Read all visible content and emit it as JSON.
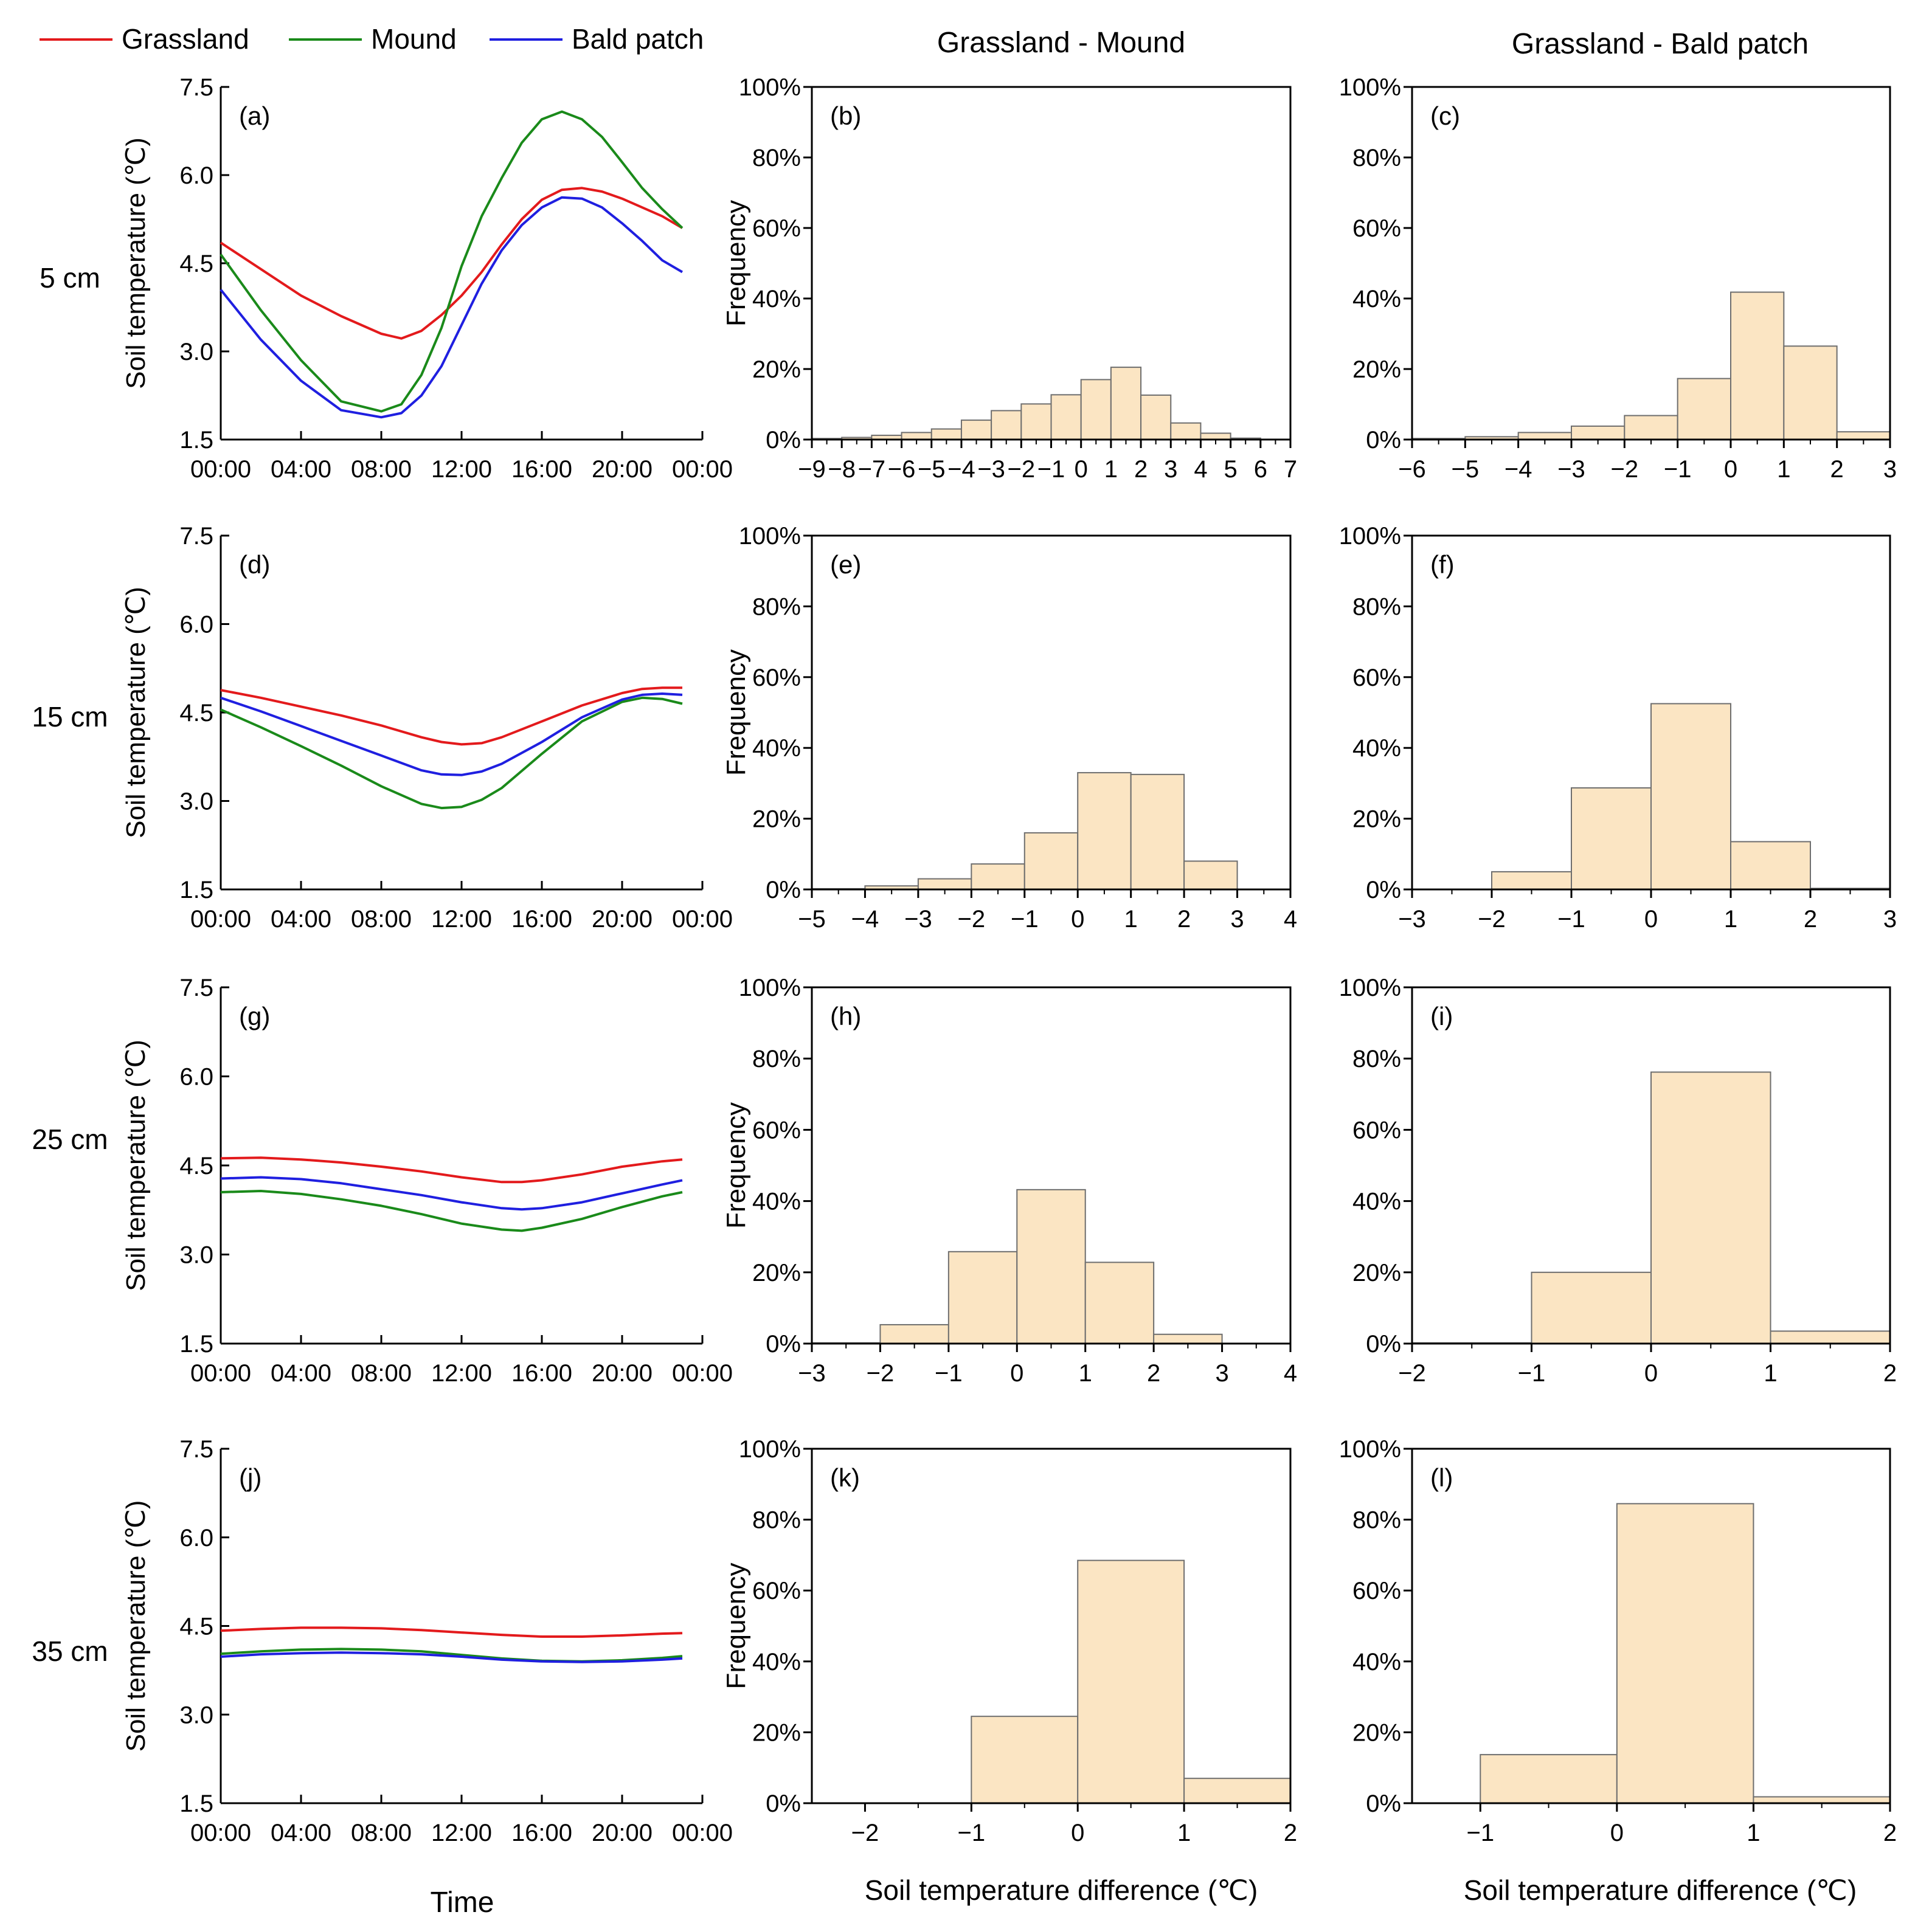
{
  "legend": {
    "items": [
      {
        "name": "Grassland",
        "color": "#e31a1c"
      },
      {
        "name": "Mound",
        "color": "#1a8a1a"
      },
      {
        "name": "Bald patch",
        "color": "#1f1fe0"
      }
    ]
  },
  "columns": {
    "col2": "Grassland - Mound",
    "col3": "Grassland - Bald patch"
  },
  "rows": [
    "5 cm",
    "15 cm",
    "25 cm",
    "35 cm"
  ],
  "axes": {
    "line_ylabel": "Soil temperature (℃)",
    "line_xlabel": "Time",
    "hist_ylabel": "Frequency",
    "hist_xlabel": "Soil temperature difference (℃)",
    "time_ticks": [
      "00:00",
      "04:00",
      "08:00",
      "12:00",
      "16:00",
      "20:00",
      "00:00"
    ],
    "temp_ticks": [
      "1.5",
      "3.0",
      "4.5",
      "6.0",
      "7.5"
    ],
    "pct_ticks": [
      "0%",
      "20%",
      "40%",
      "60%",
      "80%",
      "100%"
    ]
  },
  "chart_data": [
    {
      "id": "a",
      "type": "line",
      "panel_label": "(a)",
      "depth": "5 cm",
      "xlabel": "Time",
      "ylabel": "Soil temperature (℃)",
      "xlim": [
        0,
        24
      ],
      "ylim": [
        1.5,
        7.5
      ],
      "x": [
        0,
        2,
        4,
        6,
        8,
        9,
        10,
        11,
        12,
        13,
        14,
        15,
        16,
        17,
        18,
        19,
        20,
        21,
        22,
        23
      ],
      "series": [
        {
          "name": "Grassland",
          "values": [
            4.85,
            4.4,
            3.95,
            3.6,
            3.3,
            3.22,
            3.35,
            3.62,
            3.95,
            4.35,
            4.82,
            5.25,
            5.58,
            5.75,
            5.78,
            5.72,
            5.6,
            5.45,
            5.3,
            5.1
          ]
        },
        {
          "name": "Mound",
          "values": [
            4.65,
            3.7,
            2.85,
            2.15,
            1.98,
            2.1,
            2.6,
            3.4,
            4.45,
            5.3,
            5.95,
            6.55,
            6.95,
            7.08,
            6.95,
            6.65,
            6.22,
            5.78,
            5.42,
            5.1
          ]
        },
        {
          "name": "Bald patch",
          "values": [
            4.05,
            3.2,
            2.5,
            2.0,
            1.88,
            1.95,
            2.25,
            2.75,
            3.45,
            4.15,
            4.72,
            5.15,
            5.45,
            5.62,
            5.6,
            5.45,
            5.18,
            4.88,
            4.55,
            4.35
          ]
        }
      ]
    },
    {
      "id": "b",
      "type": "bar",
      "panel_label": "(b)",
      "xlim": [
        -9,
        7
      ],
      "ylim": [
        0,
        100
      ],
      "bins": [
        [
          -9,
          -8
        ],
        [
          -8,
          -7
        ],
        [
          -7,
          -6
        ],
        [
          -6,
          -5
        ],
        [
          -5,
          -4
        ],
        [
          -4,
          -3
        ],
        [
          -3,
          -2
        ],
        [
          -2,
          -1
        ],
        [
          -1,
          0
        ],
        [
          0,
          1
        ],
        [
          1,
          2
        ],
        [
          2,
          3
        ],
        [
          3,
          4
        ],
        [
          4,
          5
        ],
        [
          5,
          6
        ]
      ],
      "values": [
        0.3,
        0.6,
        1.2,
        2,
        3,
        5.5,
        8.2,
        10.1,
        12.7,
        17,
        20.5,
        12.6,
        4.7,
        1.8,
        0.4
      ]
    },
    {
      "id": "c",
      "type": "bar",
      "panel_label": "(c)",
      "xlim": [
        -6,
        3
      ],
      "ylim": [
        0,
        100
      ],
      "bins": [
        [
          -6,
          -5
        ],
        [
          -5,
          -4
        ],
        [
          -4,
          -3
        ],
        [
          -3,
          -2
        ],
        [
          -2,
          -1
        ],
        [
          -1,
          0
        ],
        [
          0,
          1
        ],
        [
          1,
          2
        ],
        [
          2,
          3
        ]
      ],
      "values": [
        0.3,
        0.8,
        2,
        3.8,
        6.8,
        17.3,
        41.8,
        26.5,
        2.2
      ]
    },
    {
      "id": "d",
      "type": "line",
      "panel_label": "(d)",
      "depth": "15 cm",
      "xlabel": "Time",
      "ylabel": "Soil temperature (℃)",
      "xlim": [
        0,
        24
      ],
      "ylim": [
        1.5,
        7.5
      ],
      "x": [
        0,
        2,
        4,
        6,
        8,
        10,
        11,
        12,
        13,
        14,
        16,
        18,
        20,
        21,
        22,
        23
      ],
      "series": [
        {
          "name": "Grassland",
          "values": [
            4.88,
            4.75,
            4.6,
            4.45,
            4.28,
            4.08,
            4.0,
            3.96,
            3.98,
            4.08,
            4.35,
            4.62,
            4.83,
            4.9,
            4.92,
            4.92
          ]
        },
        {
          "name": "Mound",
          "values": [
            4.55,
            4.25,
            3.93,
            3.6,
            3.25,
            2.95,
            2.88,
            2.9,
            3.02,
            3.22,
            3.8,
            4.35,
            4.68,
            4.75,
            4.73,
            4.65
          ]
        },
        {
          "name": "Bald patch",
          "values": [
            4.75,
            4.52,
            4.27,
            4.02,
            3.77,
            3.52,
            3.45,
            3.44,
            3.5,
            3.63,
            4.0,
            4.42,
            4.72,
            4.8,
            4.82,
            4.8
          ]
        }
      ]
    },
    {
      "id": "e",
      "type": "bar",
      "panel_label": "(e)",
      "xlim": [
        -5,
        4
      ],
      "ylim": [
        0,
        100
      ],
      "bins": [
        [
          -5,
          -4
        ],
        [
          -4,
          -3
        ],
        [
          -3,
          -2
        ],
        [
          -2,
          -1
        ],
        [
          -1,
          0
        ],
        [
          0,
          1
        ],
        [
          1,
          2
        ],
        [
          2,
          3
        ]
      ],
      "values": [
        0.2,
        1,
        3,
        7.2,
        16,
        33,
        32.5,
        8
      ]
    },
    {
      "id": "f",
      "type": "bar",
      "panel_label": "(f)",
      "xlim": [
        -3,
        3
      ],
      "ylim": [
        0,
        100
      ],
      "bins": [
        [
          -2,
          -1
        ],
        [
          -1,
          0
        ],
        [
          0,
          1
        ],
        [
          1,
          2
        ],
        [
          2,
          3
        ]
      ],
      "values": [
        5,
        28.7,
        52.5,
        13.5,
        0.3
      ]
    },
    {
      "id": "g",
      "type": "line",
      "panel_label": "(g)",
      "depth": "25 cm",
      "xlabel": "Time",
      "ylabel": "Soil temperature (℃)",
      "xlim": [
        0,
        24
      ],
      "ylim": [
        1.5,
        7.5
      ],
      "x": [
        0,
        2,
        4,
        6,
        8,
        10,
        12,
        14,
        15,
        16,
        18,
        20,
        22,
        23
      ],
      "series": [
        {
          "name": "Grassland",
          "values": [
            4.62,
            4.63,
            4.6,
            4.55,
            4.48,
            4.4,
            4.3,
            4.22,
            4.22,
            4.25,
            4.35,
            4.48,
            4.57,
            4.6
          ]
        },
        {
          "name": "Mound",
          "values": [
            4.05,
            4.07,
            4.02,
            3.93,
            3.82,
            3.68,
            3.52,
            3.42,
            3.4,
            3.45,
            3.6,
            3.8,
            3.98,
            4.05
          ]
        },
        {
          "name": "Bald patch",
          "values": [
            4.28,
            4.3,
            4.27,
            4.2,
            4.1,
            4.0,
            3.88,
            3.78,
            3.76,
            3.78,
            3.88,
            4.03,
            4.18,
            4.25
          ]
        }
      ]
    },
    {
      "id": "h",
      "type": "bar",
      "panel_label": "(h)",
      "xlim": [
        -3,
        4
      ],
      "ylim": [
        0,
        100
      ],
      "bins": [
        [
          -3,
          -2
        ],
        [
          -2,
          -1
        ],
        [
          -1,
          0
        ],
        [
          0,
          1
        ],
        [
          1,
          2
        ],
        [
          2,
          3
        ]
      ],
      "values": [
        0.2,
        5.3,
        25.8,
        43.2,
        22.8,
        2.6
      ]
    },
    {
      "id": "i",
      "type": "bar",
      "panel_label": "(i)",
      "xlim": [
        -2,
        2
      ],
      "ylim": [
        0,
        100
      ],
      "bins": [
        [
          -2,
          -1
        ],
        [
          -1,
          0
        ],
        [
          0,
          1
        ],
        [
          1,
          2
        ]
      ],
      "values": [
        0.2,
        20,
        76.2,
        3.5
      ]
    },
    {
      "id": "j",
      "type": "line",
      "panel_label": "(j)",
      "depth": "35 cm",
      "xlabel": "Time",
      "ylabel": "Soil temperature (℃)",
      "xlim": [
        0,
        24
      ],
      "ylim": [
        1.5,
        7.5
      ],
      "x": [
        0,
        2,
        4,
        6,
        8,
        10,
        12,
        14,
        16,
        18,
        20,
        22,
        23
      ],
      "series": [
        {
          "name": "Grassland",
          "values": [
            4.42,
            4.45,
            4.47,
            4.47,
            4.46,
            4.43,
            4.39,
            4.35,
            4.32,
            4.32,
            4.34,
            4.37,
            4.38
          ]
        },
        {
          "name": "Mound",
          "values": [
            4.03,
            4.07,
            4.1,
            4.11,
            4.1,
            4.07,
            4.01,
            3.95,
            3.91,
            3.9,
            3.92,
            3.96,
            3.99
          ]
        },
        {
          "name": "Bald patch",
          "values": [
            3.98,
            4.02,
            4.04,
            4.05,
            4.04,
            4.02,
            3.98,
            3.93,
            3.9,
            3.89,
            3.9,
            3.93,
            3.95
          ]
        }
      ]
    },
    {
      "id": "k",
      "type": "bar",
      "panel_label": "(k)",
      "xlim": [
        -2.5,
        2
      ],
      "ylim": [
        0,
        100
      ],
      "bins": [
        [
          -1,
          0
        ],
        [
          0,
          1
        ],
        [
          1,
          2
        ]
      ],
      "values": [
        24.5,
        68.5,
        7
      ]
    },
    {
      "id": "l",
      "type": "bar",
      "panel_label": "(l)",
      "xlim": [
        -1.5,
        2
      ],
      "ylim": [
        0,
        100
      ],
      "bins": [
        [
          -1,
          0
        ],
        [
          0,
          1
        ],
        [
          1,
          2
        ]
      ],
      "values": [
        13.7,
        84.5,
        1.8
      ]
    }
  ]
}
